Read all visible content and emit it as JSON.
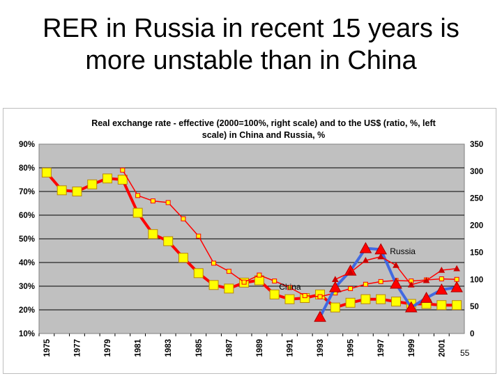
{
  "slide": {
    "title_line1": "RER in Russia in recent 15 years is",
    "title_line2": "more unstable than in China",
    "page_number": "55"
  },
  "chart_data": {
    "type": "line",
    "title_line1": "Real exchange rate - effective (2000=100%, right scale) and to the US$ (ratio, %, left",
    "title_line2": "scale) in China and Russia, %",
    "x": [
      1975,
      1976,
      1977,
      1978,
      1979,
      1980,
      1981,
      1982,
      1983,
      1984,
      1985,
      1986,
      1987,
      1988,
      1989,
      1990,
      1991,
      1992,
      1993,
      1994,
      1995,
      1996,
      1997,
      1998,
      1999,
      2000,
      2001,
      2002
    ],
    "x_tick_labels": [
      "1975",
      "1977",
      "1979",
      "1981",
      "1983",
      "1985",
      "1987",
      "1989",
      "1991",
      "1993",
      "1995",
      "1997",
      "1999",
      "2001"
    ],
    "left_axis": {
      "ylim": [
        10,
        90
      ],
      "ticks": [
        "10%",
        "20%",
        "30%",
        "40%",
        "50%",
        "60%",
        "70%",
        "80%",
        "90%"
      ],
      "tick_values": [
        10,
        20,
        30,
        40,
        50,
        60,
        70,
        80,
        90
      ]
    },
    "right_axis": {
      "ylim": [
        0,
        350
      ],
      "ticks": [
        "0",
        "50",
        "100",
        "150",
        "200",
        "250",
        "300",
        "350"
      ],
      "tick_values": [
        0,
        50,
        100,
        150,
        200,
        250,
        300,
        350
      ]
    },
    "grid": "horizontal",
    "plot_background": "#c0c0c0",
    "series": [
      {
        "name": "China",
        "axis": "left",
        "color": "#ff0000",
        "marker": "square-large",
        "marker_color": "#ffff00",
        "x": [
          1975,
          1976,
          1977,
          1978,
          1979,
          1980,
          1981,
          1982,
          1983,
          1984,
          1985,
          1986,
          1987,
          1988,
          1989,
          1990,
          1991,
          1992,
          1993,
          1994,
          1995,
          1996,
          1997,
          1998,
          1999,
          2000,
          2001,
          2002
        ],
        "values": [
          78,
          70.5,
          70,
          73,
          75.5,
          75,
          61,
          52,
          49,
          42,
          35.5,
          30.5,
          29,
          31.5,
          32.5,
          26.5,
          24.5,
          25,
          26.5,
          21,
          23,
          24.5,
          24.5,
          23.5,
          22.5,
          22.5,
          22,
          22
        ]
      },
      {
        "name": "",
        "axis": "right",
        "color": "#ff0000",
        "marker": "square-small",
        "marker_color": "#ffff00",
        "x": [
          1980,
          1981,
          1982,
          1983,
          1984,
          1985,
          1986,
          1987,
          1988,
          1989,
          1990,
          1991,
          1992,
          1993,
          1994,
          1995,
          1996,
          1997,
          1998,
          1999,
          2000,
          2001,
          2002
        ],
        "values": [
          302,
          255,
          245,
          242,
          212,
          180,
          130,
          115,
          95,
          108,
          97,
          85,
          70,
          68,
          75,
          83,
          91,
          96,
          98,
          97,
          99,
          101,
          100
        ]
      },
      {
        "name": "Russia",
        "axis": "left",
        "color": "#4169e1",
        "marker": "triangle-large",
        "marker_color": "#ff0000",
        "x": [
          1993,
          1994,
          1995,
          1996,
          1997,
          1998,
          1999,
          2000,
          2001,
          2002
        ],
        "values": [
          17,
          29.5,
          36.5,
          46,
          45.5,
          31,
          21,
          25,
          28.5,
          29.5
        ]
      },
      {
        "name": "",
        "axis": "right",
        "color": "#ff0000",
        "marker": "triangle-small",
        "marker_color": "#cc0000",
        "x": [
          1994,
          1995,
          1996,
          1997,
          1998,
          1999,
          2000,
          2001,
          2002
        ],
        "values": [
          100,
          113,
          135,
          142,
          126,
          90,
          98,
          117,
          120
        ]
      }
    ],
    "annotations": [
      {
        "text": "China",
        "x": 1990.3,
        "y": 28.5,
        "axis": "left"
      },
      {
        "text": "Russia",
        "x": 1997.6,
        "y": 43.5,
        "axis": "left"
      }
    ]
  }
}
